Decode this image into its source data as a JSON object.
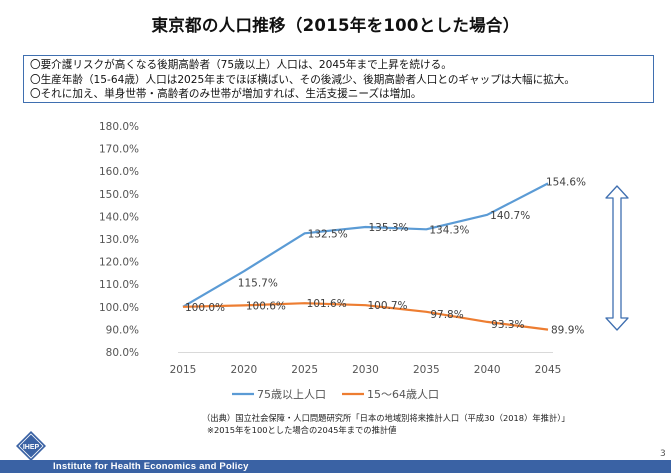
{
  "slide": {
    "title": "東京都の人口推移（2015年を100とした場合）",
    "notes": [
      "〇要介護リスクが高くなる後期高齢者（75歳以上）人口は、2045年まで上昇を続ける。",
      "〇生産年齢（15-64歳）人口は2025年までほぼ横ばい、その後減少、後期高齢者人口とのギャップは大幅に拡大。",
      "〇それに加え、単身世帯・高齢者のみ世帯が増加すれば、生活支援ニーズは増加。"
    ],
    "source_line1": "（出典）国立社会保障・人口問題研究所「日本の地域別将来推計人口（平成30（2018）年推計）」",
    "source_line2": "※2015年を100とした場合の2045年までの推計値",
    "footer": "Institute for Health Economics and Policy",
    "logo_text": "IHEP",
    "page_number": "3",
    "colors": {
      "series_75": "#5b9bd5",
      "series_15_64": "#ed7d31",
      "arrow": "#3f6fb0",
      "footer": "#3a62a4",
      "box_border": "#3f6fb0"
    }
  },
  "chart_data": {
    "type": "line",
    "title": "",
    "xlabel": "",
    "ylabel": "",
    "x": [
      "2015",
      "2020",
      "2025",
      "2030",
      "2035",
      "2040",
      "2045"
    ],
    "ylim": [
      80,
      180
    ],
    "ytick_labels": [
      "80.0%",
      "90.0%",
      "100.0%",
      "110.0%",
      "120.0%",
      "130.0%",
      "140.0%",
      "150.0%",
      "160.0%",
      "170.0%",
      "180.0%"
    ],
    "series": [
      {
        "name": "75歳以上人口",
        "color": "#5b9bd5",
        "values": [
          100.0,
          115.7,
          132.5,
          135.3,
          134.3,
          140.7,
          154.6
        ],
        "labels": [
          "",
          "115.7%",
          "132.5%",
          "135.3%",
          "134.3%",
          "140.7%",
          "154.6%"
        ]
      },
      {
        "name": "15～64歳人口",
        "color": "#ed7d31",
        "values": [
          100.0,
          100.6,
          101.6,
          100.7,
          97.8,
          93.3,
          89.9
        ],
        "labels": [
          "100.0%",
          "100.6%",
          "101.6%",
          "100.7%",
          "97.8%",
          "93.3%",
          "89.9%"
        ]
      }
    ],
    "grid": false,
    "legend": "bottom"
  }
}
